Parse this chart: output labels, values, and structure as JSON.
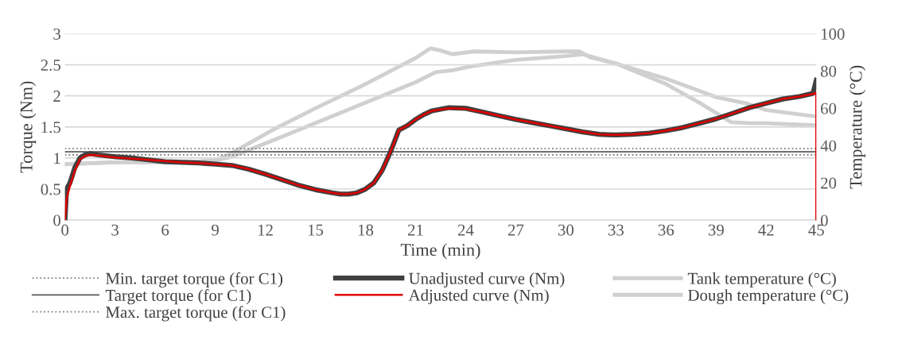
{
  "chart_data": {
    "type": "line",
    "xlabel": "Time (min)",
    "ylabel": "Torque (Nm)",
    "y2label": "Temperature (°C)",
    "xlim": [
      0,
      45
    ],
    "xticks": [
      0,
      3,
      6,
      9,
      12,
      15,
      18,
      21,
      24,
      27,
      30,
      33,
      36,
      39,
      42,
      45
    ],
    "ylim": [
      0,
      3
    ],
    "yticks": [
      0,
      0.5,
      1,
      1.5,
      2,
      2.5,
      3
    ],
    "y2lim": [
      0,
      100
    ],
    "y2ticks": [
      0,
      20,
      40,
      60,
      80,
      100
    ],
    "grid": "y",
    "legend": "bottom",
    "marker": "none",
    "ref_lines": [
      {
        "axis": "y",
        "value": 1.05,
        "label": "Min. target torque (for C1)",
        "color": "#7f7f7f",
        "line_style": "dotted"
      },
      {
        "axis": "y",
        "value": 1.1,
        "label": "Target torque (for C1)",
        "color": "#595959",
        "line_style": "solid"
      },
      {
        "axis": "y",
        "value": 1.15,
        "label": "Max. target torque (for C1)",
        "color": "#7f7f7f",
        "line_style": "dotted"
      }
    ],
    "series": [
      {
        "name": "Unadjusted curve (Nm)",
        "color": "#404040",
        "line_style": "solid",
        "x": [
          0,
          0.1,
          0.3,
          0.6,
          0.9,
          1.2,
          1.5,
          2,
          3,
          4,
          5,
          6,
          7,
          8,
          9,
          10,
          11,
          12,
          13,
          14,
          15,
          16,
          16.5,
          17,
          17.5,
          18,
          18.5,
          19,
          19.5,
          20,
          20.5,
          21,
          21.5,
          22,
          23,
          24,
          25,
          26,
          27,
          28,
          29,
          30,
          31,
          32,
          33,
          34,
          35,
          36,
          37,
          38,
          39,
          40,
          41,
          42,
          43,
          44,
          44.8,
          45
        ],
        "values": [
          0,
          0.5,
          0.6,
          0.85,
          1.0,
          1.05,
          1.07,
          1.05,
          1.02,
          1.0,
          0.97,
          0.94,
          0.93,
          0.92,
          0.9,
          0.88,
          0.82,
          0.74,
          0.65,
          0.56,
          0.49,
          0.44,
          0.42,
          0.42,
          0.44,
          0.5,
          0.6,
          0.8,
          1.1,
          1.45,
          1.52,
          1.62,
          1.7,
          1.76,
          1.81,
          1.8,
          1.74,
          1.68,
          1.62,
          1.57,
          1.52,
          1.47,
          1.42,
          1.38,
          1.37,
          1.38,
          1.4,
          1.44,
          1.49,
          1.56,
          1.63,
          1.72,
          1.81,
          1.88,
          1.95,
          1.99,
          2.04,
          2.25
        ]
      },
      {
        "name": "Adjusted curve (Nm)",
        "color": "#e00000",
        "line_style": "solid",
        "x": [
          0,
          0.1,
          0.3,
          0.6,
          0.9,
          1.2,
          1.5,
          2,
          3,
          4,
          5,
          6,
          7,
          8,
          9,
          10,
          11,
          12,
          13,
          14,
          15,
          16,
          16.5,
          17,
          17.5,
          18,
          18.5,
          19,
          19.5,
          20,
          20.5,
          21,
          21.5,
          22,
          23,
          24,
          25,
          26,
          27,
          28,
          29,
          30,
          31,
          32,
          33,
          34,
          35,
          36,
          37,
          38,
          39,
          40,
          41,
          42,
          43,
          44,
          44.8,
          45,
          45
        ],
        "values": [
          0,
          0.35,
          0.55,
          0.8,
          0.98,
          1.03,
          1.05,
          1.04,
          1.01,
          0.99,
          0.97,
          0.95,
          0.93,
          0.92,
          0.9,
          0.88,
          0.82,
          0.74,
          0.65,
          0.56,
          0.49,
          0.44,
          0.42,
          0.42,
          0.44,
          0.5,
          0.6,
          0.8,
          1.1,
          1.45,
          1.52,
          1.62,
          1.7,
          1.76,
          1.8,
          1.79,
          1.74,
          1.68,
          1.62,
          1.57,
          1.52,
          1.47,
          1.42,
          1.38,
          1.37,
          1.38,
          1.4,
          1.44,
          1.49,
          1.56,
          1.63,
          1.72,
          1.81,
          1.88,
          1.95,
          1.99,
          2.03,
          2.05,
          0
        ]
      },
      {
        "name": "Tank temperature (°C)",
        "color": "#d0d0d0",
        "axis": "y2",
        "line_style": "solid",
        "x": [
          0,
          3,
          6,
          8,
          9,
          10,
          12.4,
          15,
          18,
          21,
          21.9,
          22.5,
          23.2,
          24.5,
          27,
          30,
          30.8,
          31.5,
          33,
          36,
          38,
          39.9,
          41,
          42,
          45
        ],
        "values": [
          30,
          31,
          31,
          31.5,
          32,
          36,
          48.2,
          60,
          73,
          87,
          92.2,
          91,
          89,
          90.5,
          90,
          90.5,
          90.5,
          87.2,
          84,
          73,
          63,
          52.5,
          52,
          52,
          50.8
        ]
      },
      {
        "name": "Dough temperature (°C)",
        "color": "#d0d0d0",
        "axis": "y2",
        "line_style": "solid",
        "x": [
          0,
          3,
          6,
          8,
          9,
          10,
          12.4,
          15,
          18,
          21,
          22.2,
          23.3,
          24.3,
          27,
          30,
          31,
          33,
          36,
          39,
          40.9,
          42,
          45
        ],
        "values": [
          30,
          31,
          31,
          31.5,
          32,
          34,
          42.6,
          52,
          63,
          74,
          79.4,
          80.5,
          82.5,
          86,
          88,
          89,
          84,
          75.9,
          66,
          62.4,
          59,
          55.6
        ]
      }
    ]
  }
}
